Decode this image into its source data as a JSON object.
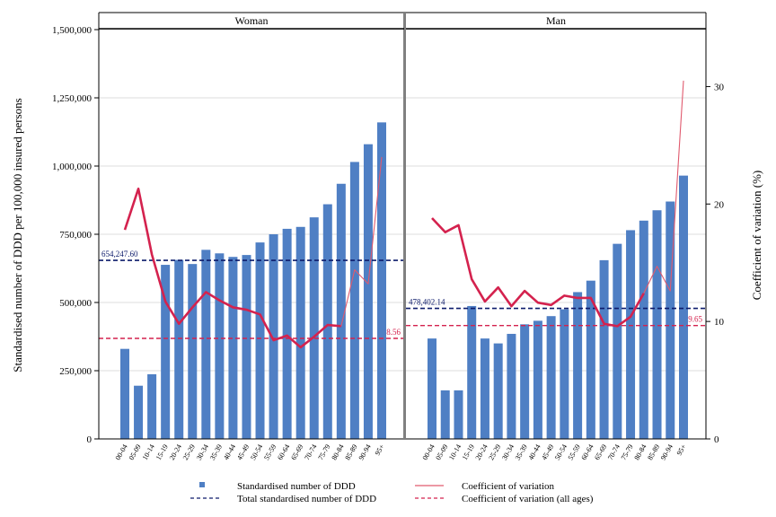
{
  "chart_data": {
    "type": "bar",
    "yaxis_left": {
      "label": "Standardised number of DDD per 100,000 insured persons",
      "range": [
        0,
        1562500
      ],
      "ticks": [
        0,
        250000,
        500000,
        750000,
        1000000,
        1250000,
        1500000
      ],
      "tick_labels": [
        "0",
        "250,000",
        "500,000",
        "750,000",
        "1,000,000",
        "1,250,000",
        "1,500,000"
      ]
    },
    "yaxis_right": {
      "label": "Coefficient of variation (%)",
      "range": [
        0,
        36.3
      ],
      "ticks": [
        0,
        10,
        20,
        30
      ],
      "tick_labels": [
        "0",
        "10",
        "20",
        "30"
      ]
    },
    "categories": [
      "00-04",
      "05-09",
      "10-14",
      "15-19",
      "20-24",
      "25-29",
      "30-34",
      "35-39",
      "40-44",
      "45-49",
      "50-54",
      "55-59",
      "60-64",
      "65-69",
      "70-74",
      "75-79",
      "80-84",
      "85-89",
      "90-94",
      "95+"
    ],
    "panels": [
      {
        "title": "Woman",
        "bars": [
          330000,
          195000,
          237000,
          638000,
          656000,
          641000,
          693000,
          680000,
          667000,
          674000,
          720000,
          750000,
          770000,
          777000,
          812000,
          860000,
          935000,
          1015000,
          1080000,
          1160000
        ],
        "cv": [
          17.8,
          21.3,
          15.7,
          11.7,
          9.8,
          11.2,
          12.5,
          11.8,
          11.2,
          11.0,
          10.6,
          8.4,
          8.8,
          7.8,
          8.7,
          9.7,
          9.6,
          14.4,
          13.2,
          24.0
        ],
        "total": 654247.6,
        "total_label": "654,247.60",
        "cv_all": 8.56,
        "cv_all_label": "8.56"
      },
      {
        "title": "Man",
        "bars": [
          368000,
          178000,
          178000,
          487000,
          368000,
          350000,
          385000,
          420000,
          433000,
          450000,
          475000,
          538000,
          580000,
          655000,
          715000,
          765000,
          800000,
          838000,
          870000,
          965000
        ],
        "cv": [
          18.8,
          17.6,
          18.2,
          13.6,
          11.7,
          12.9,
          11.3,
          12.6,
          11.6,
          11.4,
          12.2,
          12.0,
          12.0,
          9.8,
          9.6,
          10.4,
          12.4,
          14.7,
          12.6,
          30.5
        ],
        "total": 478402.14,
        "total_label": "478,402.14",
        "cv_all": 9.65,
        "cv_all_label": "9.65"
      }
    ],
    "legend": {
      "placement": "bottom",
      "items": [
        {
          "label": "Standardised number of DDD",
          "kind": "bar"
        },
        {
          "label": "Coefficient of variation",
          "kind": "line"
        },
        {
          "label": "Total standardised number of DDD",
          "kind": "dash-navy"
        },
        {
          "label": "Coefficient of variation (all ages)",
          "kind": "dash-crimson"
        }
      ]
    },
    "colors": {
      "bar": "#4f7fc4",
      "cv_line": "#d4224e",
      "cv_line_thin": "#e05a6e",
      "total_line": "#0d1b6b",
      "cv_all_line": "#d4224e",
      "divider": "#808080"
    },
    "grid": "horizontal"
  }
}
